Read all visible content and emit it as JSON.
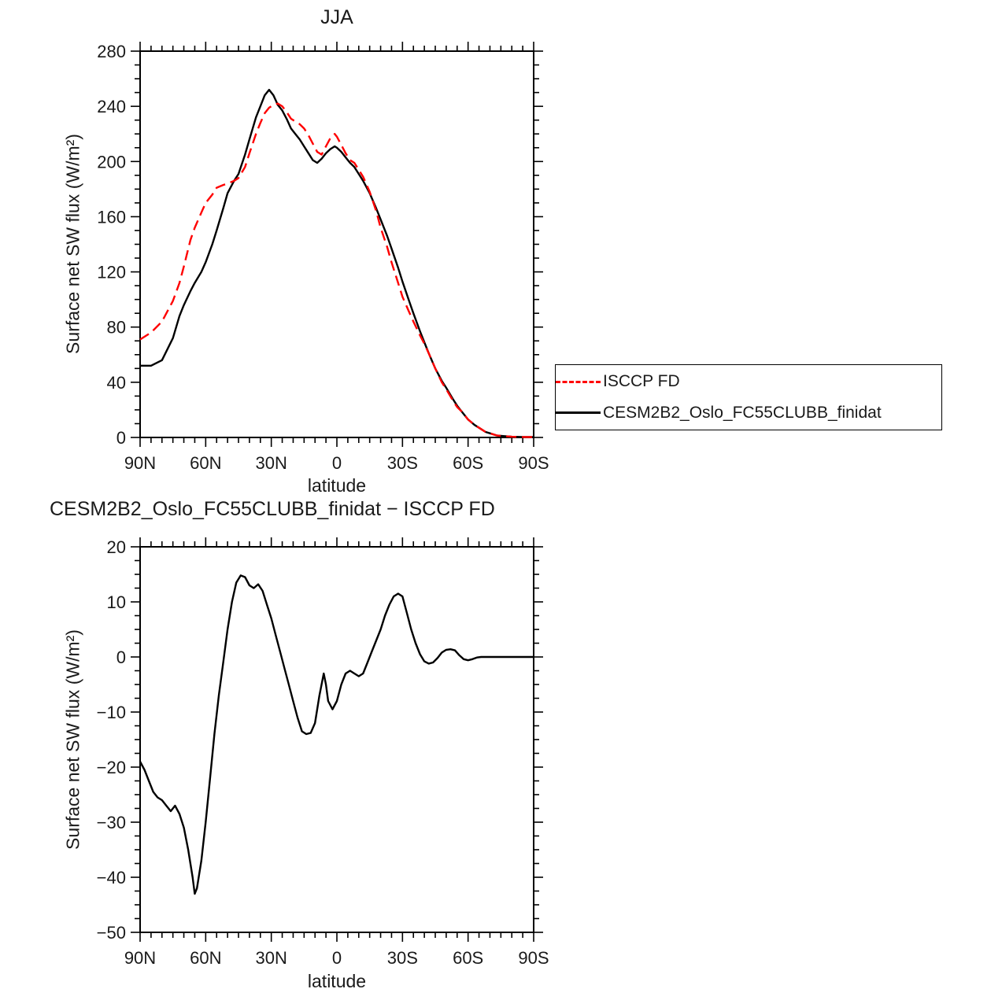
{
  "page": {
    "background": "#ffffff",
    "axis_color": "#000000",
    "text_color": "#1a1a1a"
  },
  "chart_data": [
    {
      "id": "top",
      "type": "line",
      "title": "JJA",
      "xlabel": "latitude",
      "ylabel": "Surface net SW flux (W/m²)",
      "xlim": [
        90,
        -90
      ],
      "ylim": [
        0,
        280
      ],
      "grid": false,
      "legend_position": "outside-right",
      "xticks": [
        {
          "v": 90,
          "label": "90N"
        },
        {
          "v": 60,
          "label": "60N"
        },
        {
          "v": 30,
          "label": "30N"
        },
        {
          "v": 0,
          "label": "0"
        },
        {
          "v": -30,
          "label": "30S"
        },
        {
          "v": -60,
          "label": "60S"
        },
        {
          "v": -90,
          "label": "90S"
        }
      ],
      "yticks": [
        {
          "v": 0,
          "label": "0"
        },
        {
          "v": 40,
          "label": "40"
        },
        {
          "v": 80,
          "label": "80"
        },
        {
          "v": 120,
          "label": "120"
        },
        {
          "v": 160,
          "label": "160"
        },
        {
          "v": 200,
          "label": "200"
        },
        {
          "v": 240,
          "label": "240"
        },
        {
          "v": 280,
          "label": "280"
        }
      ],
      "xminor_step": 5,
      "yminor_step": 10,
      "x": [
        90,
        85,
        80,
        75,
        72,
        70,
        67,
        65,
        62,
        60,
        57,
        55,
        52,
        50,
        47,
        45,
        42,
        40,
        37,
        35,
        33,
        31,
        29,
        27,
        25,
        23,
        21,
        19,
        17,
        15,
        13,
        11,
        9,
        7,
        5,
        3,
        1,
        0,
        -2,
        -4,
        -6,
        -8,
        -10,
        -12,
        -15,
        -18,
        -20,
        -23,
        -25,
        -28,
        -30,
        -33,
        -35,
        -38,
        -40,
        -42,
        -45,
        -48,
        -50,
        -53,
        -55,
        -57,
        -60,
        -63,
        -65,
        -68,
        -70,
        -73,
        -76,
        -80,
        -85,
        -90
      ],
      "series": [
        {
          "name": "ISCCP FD",
          "color": "#ff0000",
          "dash": true,
          "values": [
            71,
            76,
            84,
            99,
            112,
            124,
            143,
            152,
            163,
            170,
            176,
            181,
            183,
            184,
            186,
            188,
            196,
            206,
            220,
            228,
            235,
            239,
            241,
            242,
            240,
            236,
            231,
            229,
            227,
            224,
            219,
            213,
            207,
            205,
            211,
            217,
            220,
            218,
            212,
            206,
            201,
            199,
            194,
            189,
            178,
            164,
            152,
            138,
            127,
            112,
            102,
            91,
            84,
            74,
            68,
            61,
            50,
            40,
            35,
            27,
            22,
            19,
            13,
            9,
            7,
            4,
            3,
            1.5,
            1,
            0.5,
            0.3,
            0.3
          ]
        },
        {
          "name": "CESM2B2_Oslo_FC55CLUBB_finidat",
          "color": "#000000",
          "dash": false,
          "values": [
            52,
            52,
            56,
            72,
            88,
            96,
            106,
            112,
            120,
            127,
            140,
            150,
            166,
            177,
            186,
            191,
            205,
            216,
            232,
            240,
            248,
            252,
            248,
            241,
            237,
            231,
            224,
            220,
            216,
            211,
            206,
            201,
            199,
            202,
            206,
            209,
            211,
            210,
            207,
            203,
            199,
            196,
            191,
            186,
            177,
            166,
            158,
            146,
            137,
            123,
            113,
            99,
            90,
            77,
            69,
            61,
            50,
            41,
            36,
            28,
            23,
            19,
            13,
            9,
            7,
            4,
            3,
            1.5,
            1,
            0.5,
            0.3,
            0.3
          ]
        }
      ]
    },
    {
      "id": "bottom",
      "type": "line",
      "title": "CESM2B2_Oslo_FC55CLUBB_finidat − ISCCP FD",
      "xlabel": "latitude",
      "ylabel": "Surface net SW flux (W/m²)",
      "xlim": [
        90,
        -90
      ],
      "ylim": [
        -50,
        20
      ],
      "grid": false,
      "xticks": [
        {
          "v": 90,
          "label": "90N"
        },
        {
          "v": 60,
          "label": "60N"
        },
        {
          "v": 30,
          "label": "30N"
        },
        {
          "v": 0,
          "label": "0"
        },
        {
          "v": -30,
          "label": "30S"
        },
        {
          "v": -60,
          "label": "60S"
        },
        {
          "v": -90,
          "label": "90S"
        }
      ],
      "yticks": [
        {
          "v": 20,
          "label": "20"
        },
        {
          "v": 10,
          "label": "10"
        },
        {
          "v": 0,
          "label": "0"
        },
        {
          "v": -10,
          "label": "−10"
        },
        {
          "v": -20,
          "label": "−20"
        },
        {
          "v": -30,
          "label": "−30"
        },
        {
          "v": -40,
          "label": "−40"
        },
        {
          "v": -50,
          "label": "−50"
        }
      ],
      "xminor_step": 5,
      "yminor_step": 2.5,
      "x": [
        90,
        88,
        86,
        84,
        82,
        80,
        78,
        76,
        74,
        72,
        70,
        68,
        66,
        65,
        64,
        62,
        60,
        58,
        56,
        54,
        52,
        50,
        48,
        46,
        44,
        42,
        40,
        38,
        36,
        34,
        32,
        30,
        28,
        26,
        24,
        22,
        20,
        18,
        16,
        14,
        12,
        10,
        8,
        6,
        5,
        4,
        2,
        0,
        -2,
        -4,
        -6,
        -8,
        -10,
        -12,
        -14,
        -16,
        -18,
        -20,
        -22,
        -24,
        -26,
        -28,
        -30,
        -32,
        -34,
        -36,
        -38,
        -40,
        -42,
        -44,
        -46,
        -48,
        -50,
        -52,
        -54,
        -56,
        -58,
        -60,
        -62,
        -64,
        -66,
        -70,
        -75,
        -80,
        -85,
        -90
      ],
      "series": [
        {
          "name": "CESM2B2_Oslo_FC55CLUBB_finidat minus ISCCP FD",
          "color": "#000000",
          "dash": false,
          "values": [
            -19,
            -20.5,
            -22.5,
            -24.5,
            -25.5,
            -26,
            -27,
            -28,
            -27,
            -28.5,
            -31,
            -35,
            -40,
            -43,
            -42,
            -37,
            -30,
            -22,
            -14,
            -7,
            -1,
            5,
            10,
            13.5,
            14.8,
            14.5,
            13,
            12.5,
            13.2,
            12,
            9.5,
            7,
            4,
            1,
            -2,
            -5,
            -8,
            -11,
            -13.5,
            -14,
            -13.8,
            -12,
            -7,
            -3,
            -5,
            -8,
            -9.5,
            -8,
            -5,
            -3,
            -2.5,
            -3,
            -3.5,
            -3,
            -1,
            1,
            3,
            5,
            7.5,
            9.5,
            11,
            11.5,
            11,
            8,
            5,
            2.5,
            0.5,
            -0.8,
            -1.2,
            -1,
            -0.2,
            0.8,
            1.3,
            1.4,
            1.2,
            0.3,
            -0.4,
            -0.6,
            -0.4,
            -0.1,
            0,
            0,
            0,
            0,
            0,
            0
          ]
        }
      ]
    }
  ]
}
